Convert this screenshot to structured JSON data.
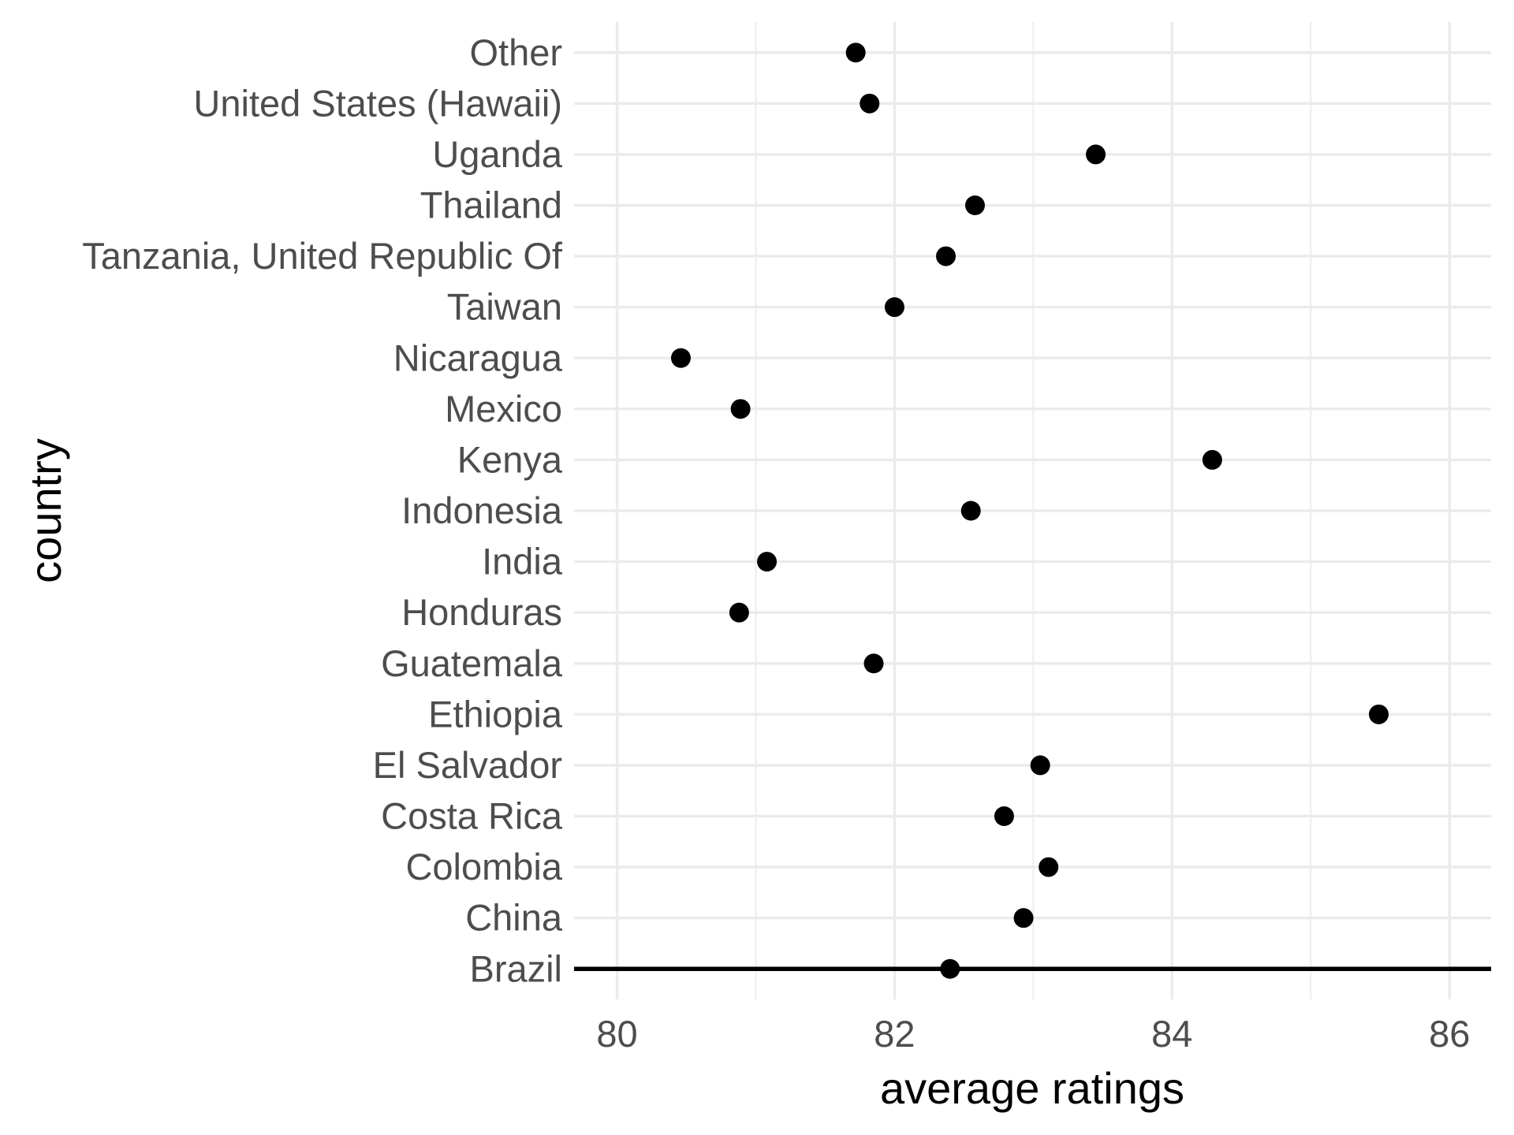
{
  "chart_data": {
    "type": "scatter",
    "title": "",
    "xlabel": "average ratings",
    "ylabel": "country",
    "categories": [
      "Other",
      "United States (Hawaii)",
      "Uganda",
      "Thailand",
      "Tanzania, United Republic Of",
      "Taiwan",
      "Nicaragua",
      "Mexico",
      "Kenya",
      "Indonesia",
      "India",
      "Honduras",
      "Guatemala",
      "Ethiopia",
      "El Salvador",
      "Costa Rica",
      "Colombia",
      "China",
      "Brazil"
    ],
    "values": [
      81.72,
      81.82,
      83.45,
      82.58,
      82.37,
      82.0,
      80.46,
      80.89,
      84.29,
      82.55,
      81.08,
      80.88,
      81.85,
      85.49,
      83.05,
      82.79,
      83.11,
      82.93,
      82.4
    ],
    "x_ticks": [
      80,
      82,
      84,
      86
    ],
    "x_tick_labels": [
      "80",
      "82",
      "84",
      "86"
    ],
    "x_minor_ticks": [
      81,
      83,
      85
    ],
    "xlim": [
      79.69,
      86.3
    ],
    "grid": "on",
    "legend_position": "none",
    "annotations": [
      {
        "type": "hline",
        "at_category": "Brazil"
      }
    ],
    "colors": {
      "point": "#000000",
      "grid_major": "#ebebeb",
      "grid_minor": "#ebebeb",
      "tick_label": "#4d4d4d",
      "axis_title": "#000000",
      "hline": "#000000",
      "background": "#ffffff"
    }
  }
}
